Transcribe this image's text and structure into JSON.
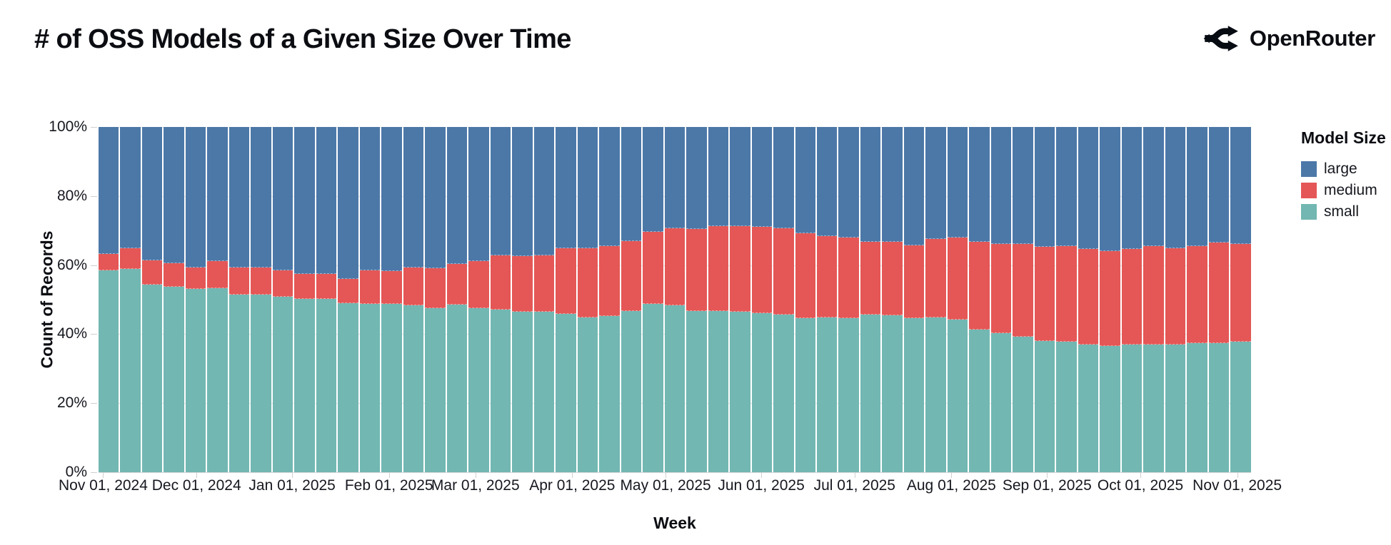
{
  "header": {
    "title": "# of OSS Models of a Given Size Over Time",
    "brand": "OpenRouter"
  },
  "legend": {
    "title": "Model Size",
    "items": [
      {
        "label": "large",
        "color": "#4c78a8"
      },
      {
        "label": "medium",
        "color": "#e45756"
      },
      {
        "label": "small",
        "color": "#72b7b2"
      }
    ]
  },
  "chart_data": {
    "type": "bar",
    "stacked": true,
    "normalized": true,
    "title": "# of OSS Models of a Given Size Over Time",
    "xlabel": "Week",
    "ylabel": "Count of Records",
    "ylim": [
      0,
      100
    ],
    "grid": true,
    "legend_position": "right",
    "weeks_count": 53,
    "stack_order_bottom_to_top": [
      "small",
      "medium",
      "large"
    ],
    "y_ticks": [
      {
        "label": "0%",
        "pct": 0
      },
      {
        "label": "20%",
        "pct": 20
      },
      {
        "label": "40%",
        "pct": 40
      },
      {
        "label": "60%",
        "pct": 60
      },
      {
        "label": "80%",
        "pct": 80
      },
      {
        "label": "100%",
        "pct": 100
      }
    ],
    "x_ticks": [
      {
        "label": "Nov 01, 2024",
        "pos_pct": 0.4
      },
      {
        "label": "Dec 01, 2024",
        "pos_pct": 8.5
      },
      {
        "label": "Jan 01, 2025",
        "pos_pct": 16.8
      },
      {
        "label": "Feb 01, 2025",
        "pos_pct": 25.2
      },
      {
        "label": "Mar 01, 2025",
        "pos_pct": 32.7
      },
      {
        "label": "Apr 01, 2025",
        "pos_pct": 41.1
      },
      {
        "label": "May 01, 2025",
        "pos_pct": 49.2
      },
      {
        "label": "Jun 01, 2025",
        "pos_pct": 57.5
      },
      {
        "label": "Jul 01, 2025",
        "pos_pct": 65.6
      },
      {
        "label": "Aug 01, 2025",
        "pos_pct": 74.0
      },
      {
        "label": "Sep 01, 2025",
        "pos_pct": 82.3
      },
      {
        "label": "Oct 01, 2025",
        "pos_pct": 90.4
      },
      {
        "label": "Nov 01, 2025",
        "pos_pct": 98.8
      }
    ],
    "series": [
      {
        "name": "small",
        "values": [
          58.5,
          58.8,
          54.4,
          53.7,
          53.1,
          53.3,
          51.5,
          51.5,
          50.9,
          50.3,
          50.3,
          49.0,
          48.7,
          48.8,
          48.3,
          47.6,
          48.5,
          47.6,
          47.1,
          46.5,
          46.5,
          45.8,
          44.8,
          45.3,
          46.7,
          48.8,
          48.3,
          46.7,
          46.7,
          46.4,
          46.0,
          45.6,
          44.6,
          44.8,
          44.6,
          45.7,
          45.5,
          44.7,
          44.9,
          44.3,
          41.3,
          40.3,
          39.2,
          38.0,
          37.9,
          37.0,
          36.6,
          36.9,
          37.0,
          36.9,
          37.5,
          37.3,
          37.9
        ]
      },
      {
        "name": "medium",
        "values": [
          4.7,
          6.1,
          7.0,
          6.9,
          6.1,
          7.8,
          7.9,
          7.9,
          7.6,
          7.1,
          7.1,
          7.0,
          9.8,
          9.4,
          11.1,
          11.5,
          11.9,
          13.6,
          15.7,
          16.1,
          16.3,
          19.1,
          20.1,
          20.3,
          20.2,
          20.8,
          22.4,
          23.8,
          24.6,
          24.8,
          25.0,
          25.1,
          24.6,
          23.5,
          23.3,
          21.1,
          21.3,
          21.1,
          22.7,
          23.6,
          25.5,
          25.9,
          27.0,
          27.3,
          27.6,
          27.6,
          27.4,
          27.7,
          28.5,
          27.9,
          28.0,
          29.2,
          28.2
        ]
      },
      {
        "name": "large",
        "values": [
          36.8,
          35.1,
          38.6,
          39.4,
          40.8,
          38.9,
          40.6,
          40.6,
          41.5,
          42.6,
          42.6,
          44.0,
          41.5,
          41.8,
          40.6,
          40.9,
          39.6,
          38.8,
          37.2,
          37.4,
          37.2,
          35.1,
          35.1,
          34.4,
          33.1,
          30.4,
          29.3,
          29.5,
          28.7,
          28.8,
          29.0,
          29.3,
          30.8,
          31.7,
          32.1,
          33.2,
          33.2,
          34.2,
          32.4,
          32.1,
          33.2,
          33.8,
          33.8,
          34.7,
          34.5,
          35.4,
          36.0,
          35.4,
          34.5,
          35.2,
          34.5,
          33.5,
          33.9
        ]
      }
    ]
  }
}
